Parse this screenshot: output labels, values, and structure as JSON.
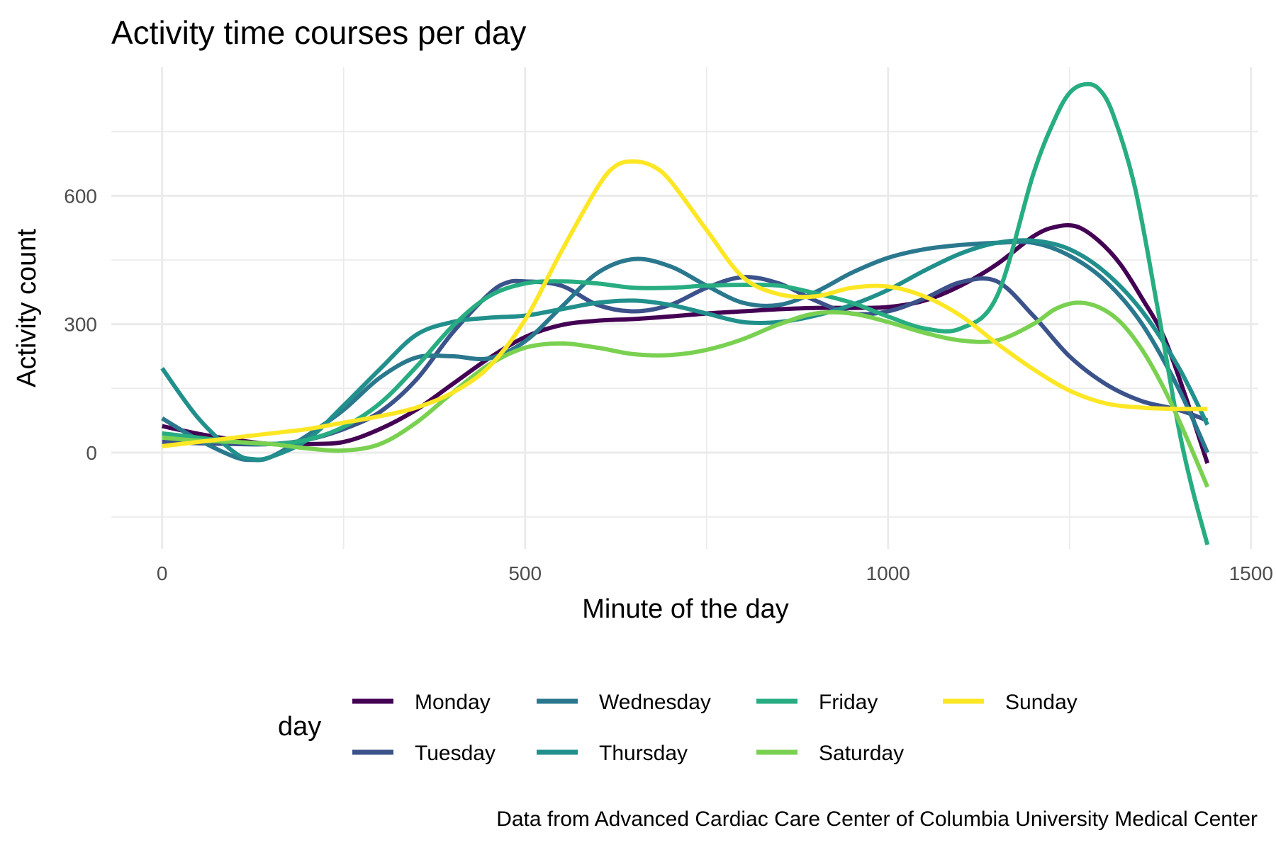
{
  "chart_data": {
    "type": "line",
    "title": "Activity time courses per day",
    "xlabel": "Minute of the day",
    "ylabel": "Activity count",
    "caption": "Data from Advanced Cardiac Care Center of Columbia University Medical Center",
    "xlim": [
      -70,
      1510
    ],
    "ylim": [
      -225,
      900
    ],
    "x_ticks": [
      0,
      500,
      1000,
      1500
    ],
    "x_tick_labels": [
      "0",
      "500",
      "1000",
      "1500"
    ],
    "y_ticks": [
      0,
      300,
      600
    ],
    "y_tick_labels": [
      "0",
      "300",
      "600"
    ],
    "grid": true,
    "legend": {
      "title": "day",
      "position": "bottom"
    },
    "series": [
      {
        "name": "Monday",
        "color": "#440154",
        "x": [
          0,
          50,
          100,
          150,
          200,
          250,
          300,
          350,
          400,
          450,
          500,
          550,
          600,
          650,
          700,
          750,
          800,
          850,
          900,
          950,
          1000,
          1050,
          1100,
          1150,
          1200,
          1230,
          1260,
          1290,
          1320,
          1350,
          1380,
          1410,
          1440
        ],
        "y": [
          62,
          44,
          30,
          20,
          20,
          25,
          55,
          100,
          160,
          220,
          270,
          298,
          308,
          312,
          318,
          325,
          330,
          335,
          338,
          338,
          340,
          355,
          390,
          440,
          505,
          527,
          528,
          495,
          440,
          360,
          270,
          130,
          -25
        ]
      },
      {
        "name": "Tuesday",
        "color": "#3b528b",
        "x": [
          0,
          50,
          100,
          150,
          200,
          250,
          300,
          350,
          400,
          450,
          475,
          500,
          550,
          600,
          650,
          700,
          750,
          800,
          850,
          900,
          950,
          1000,
          1050,
          1100,
          1150,
          1200,
          1250,
          1300,
          1350,
          1400,
          1440
        ],
        "y": [
          25,
          22,
          20,
          20,
          30,
          55,
          95,
          170,
          280,
          370,
          397,
          400,
          390,
          345,
          330,
          345,
          385,
          410,
          395,
          355,
          325,
          330,
          360,
          398,
          400,
          320,
          225,
          160,
          120,
          100,
          75
        ]
      },
      {
        "name": "Wednesday",
        "color": "#2a788e",
        "x": [
          0,
          50,
          100,
          125,
          150,
          200,
          250,
          300,
          350,
          400,
          450,
          500,
          550,
          600,
          650,
          700,
          750,
          800,
          850,
          900,
          950,
          1000,
          1050,
          1100,
          1150,
          1200,
          1250,
          1300,
          1350,
          1400,
          1440
        ],
        "y": [
          80,
          30,
          -10,
          -17,
          -10,
          40,
          100,
          175,
          222,
          225,
          220,
          260,
          340,
          420,
          452,
          435,
          390,
          350,
          345,
          375,
          420,
          455,
          475,
          485,
          490,
          490,
          460,
          400,
          300,
          150,
          0
        ]
      },
      {
        "name": "Thursday",
        "color": "#21908c",
        "x": [
          0,
          50,
          100,
          125,
          150,
          200,
          250,
          300,
          350,
          400,
          450,
          500,
          550,
          600,
          650,
          700,
          750,
          800,
          850,
          900,
          950,
          1000,
          1050,
          1100,
          1150,
          1200,
          1250,
          1300,
          1350,
          1400,
          1440
        ],
        "y": [
          197,
          80,
          0,
          -15,
          -10,
          30,
          110,
          195,
          275,
          305,
          315,
          320,
          335,
          350,
          355,
          345,
          325,
          305,
          305,
          320,
          345,
          380,
          425,
          465,
          490,
          495,
          475,
          420,
          330,
          200,
          65
        ]
      },
      {
        "name": "Friday",
        "color": "#27ad81",
        "x": [
          0,
          50,
          100,
          150,
          200,
          250,
          300,
          350,
          400,
          450,
          500,
          550,
          600,
          650,
          700,
          750,
          800,
          850,
          900,
          950,
          1000,
          1050,
          1100,
          1150,
          1200,
          1230,
          1250,
          1270,
          1290,
          1310,
          1340,
          1370,
          1400,
          1420,
          1440
        ],
        "y": [
          45,
          35,
          25,
          20,
          30,
          60,
          115,
          200,
          295,
          365,
          395,
          400,
          395,
          385,
          385,
          390,
          392,
          390,
          372,
          350,
          318,
          290,
          290,
          365,
          650,
          780,
          840,
          860,
          850,
          790,
          620,
          350,
          60,
          -90,
          -215
        ]
      },
      {
        "name": "Saturday",
        "color": "#7ad151",
        "x": [
          0,
          50,
          100,
          150,
          200,
          250,
          300,
          350,
          400,
          450,
          500,
          550,
          600,
          650,
          700,
          750,
          800,
          850,
          900,
          950,
          1000,
          1050,
          1100,
          1150,
          1200,
          1230,
          1260,
          1290,
          1320,
          1350,
          1380,
          1410,
          1440
        ],
        "y": [
          35,
          28,
          25,
          20,
          10,
          5,
          20,
          70,
          140,
          205,
          245,
          255,
          245,
          230,
          228,
          240,
          265,
          300,
          325,
          325,
          305,
          280,
          262,
          262,
          300,
          335,
          350,
          340,
          305,
          240,
          150,
          40,
          -80
        ]
      },
      {
        "name": "Sunday",
        "color": "#fde725",
        "x": [
          0,
          50,
          100,
          150,
          200,
          250,
          300,
          350,
          400,
          450,
          500,
          550,
          600,
          625,
          650,
          675,
          700,
          750,
          800,
          850,
          900,
          950,
          1000,
          1050,
          1100,
          1150,
          1200,
          1250,
          1300,
          1350,
          1400,
          1440
        ],
        "y": [
          15,
          25,
          35,
          45,
          55,
          70,
          85,
          105,
          140,
          200,
          310,
          470,
          620,
          670,
          680,
          670,
          635,
          520,
          410,
          370,
          365,
          385,
          388,
          365,
          320,
          255,
          195,
          145,
          115,
          105,
          102,
          102
        ]
      }
    ]
  }
}
